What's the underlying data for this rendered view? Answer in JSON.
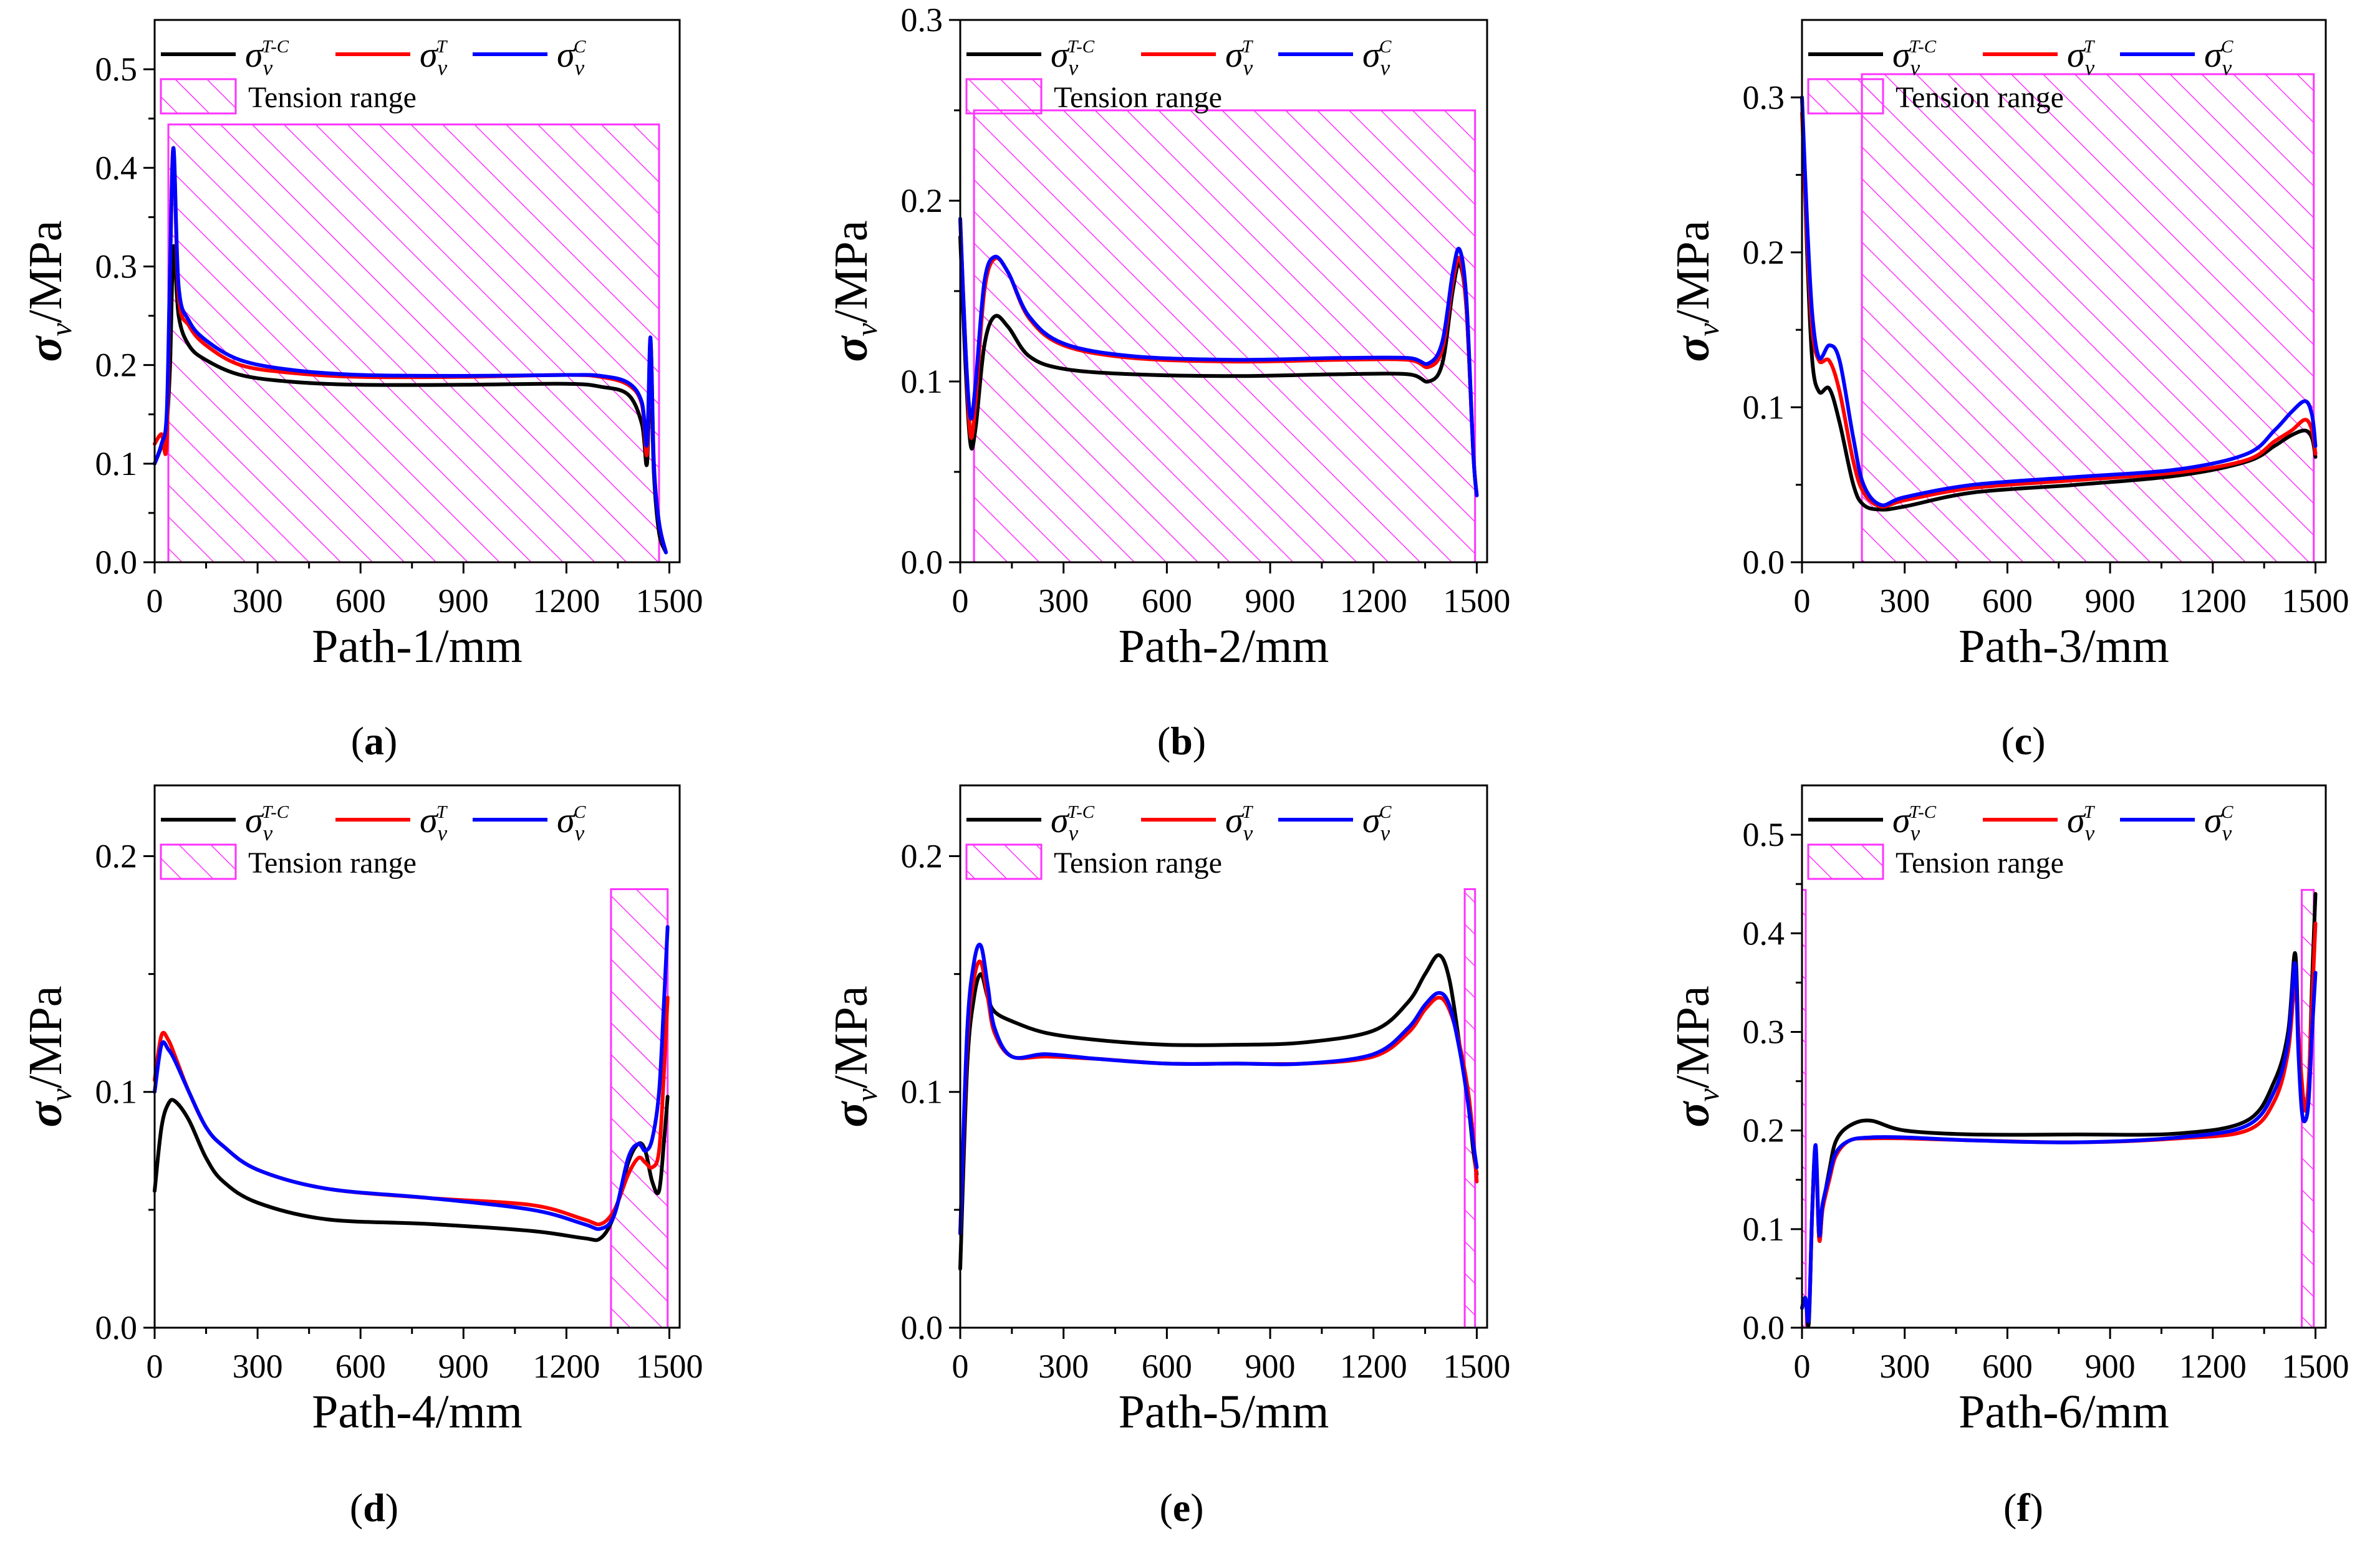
{
  "legend": {
    "tension_label": "Tension range",
    "tc_sup": "T-C",
    "t_sup": "T",
    "c_sup": "C"
  },
  "colors": {
    "tc": "#000000",
    "t": "#ff0000",
    "c": "#0000ff",
    "hatch": "#ff33ff"
  },
  "chart_data": [
    {
      "type": "line",
      "label": "(a)",
      "xlabel": "Path-1/mm",
      "ylabel": "/MPa",
      "xlim": [
        0,
        1530
      ],
      "ylim": [
        0,
        0.55
      ],
      "xticks": [
        0,
        300,
        600,
        900,
        1200,
        1500
      ],
      "yticks": [
        0.0,
        0.1,
        0.2,
        0.3,
        0.4,
        0.5
      ],
      "tension_ranges": [
        [
          40,
          1470
        ]
      ],
      "tension_ymax": 0.444,
      "series": [
        {
          "name": "σv T-C",
          "x": [
            0,
            20,
            35,
            45,
            55,
            70,
            100,
            150,
            250,
            400,
            600,
            900,
            1200,
            1300,
            1380,
            1420,
            1435,
            1445,
            1455,
            1470,
            1490
          ],
          "y": [
            0.1,
            0.118,
            0.14,
            0.2,
            0.32,
            0.25,
            0.22,
            0.205,
            0.19,
            0.183,
            0.18,
            0.18,
            0.181,
            0.178,
            0.17,
            0.14,
            0.1,
            0.2,
            0.09,
            0.03,
            0.01
          ]
        },
        {
          "name": "σv T",
          "x": [
            0,
            20,
            35,
            45,
            55,
            70,
            100,
            150,
            250,
            400,
            600,
            900,
            1200,
            1300,
            1380,
            1420,
            1435,
            1445,
            1455,
            1470,
            1490
          ],
          "y": [
            0.12,
            0.13,
            0.12,
            0.3,
            0.42,
            0.27,
            0.24,
            0.22,
            0.2,
            0.192,
            0.188,
            0.188,
            0.19,
            0.188,
            0.18,
            0.16,
            0.11,
            0.225,
            0.1,
            0.04,
            0.01
          ]
        },
        {
          "name": "σv C",
          "x": [
            0,
            20,
            35,
            45,
            55,
            70,
            100,
            150,
            250,
            400,
            600,
            900,
            1200,
            1300,
            1380,
            1420,
            1435,
            1445,
            1455,
            1470,
            1490
          ],
          "y": [
            0.1,
            0.12,
            0.15,
            0.3,
            0.42,
            0.28,
            0.245,
            0.225,
            0.205,
            0.195,
            0.19,
            0.189,
            0.19,
            0.189,
            0.182,
            0.162,
            0.12,
            0.228,
            0.1,
            0.04,
            0.01
          ]
        }
      ]
    },
    {
      "type": "line",
      "label": "(b)",
      "xlabel": "Path-2/mm",
      "ylabel": "/MPa",
      "xlim": [
        0,
        1530
      ],
      "ylim": [
        0,
        0.3
      ],
      "xticks": [
        0,
        300,
        600,
        900,
        1200,
        1500
      ],
      "yticks": [
        0.0,
        0.1,
        0.2,
        0.3
      ],
      "tension_ranges": [
        [
          40,
          1495
        ]
      ],
      "tension_ymax": 0.25,
      "series": [
        {
          "name": "σv T-C",
          "x": [
            0,
            15,
            30,
            45,
            70,
            100,
            140,
            200,
            300,
            500,
            800,
            1100,
            1300,
            1360,
            1400,
            1430,
            1450,
            1470,
            1490,
            1500
          ],
          "y": [
            0.18,
            0.11,
            0.065,
            0.075,
            0.12,
            0.136,
            0.13,
            0.114,
            0.107,
            0.104,
            0.103,
            0.104,
            0.104,
            0.1,
            0.11,
            0.15,
            0.165,
            0.14,
            0.06,
            0.037
          ]
        },
        {
          "name": "σv T",
          "x": [
            0,
            15,
            30,
            45,
            70,
            100,
            140,
            200,
            300,
            500,
            800,
            1100,
            1300,
            1360,
            1400,
            1430,
            1450,
            1470,
            1490,
            1500
          ],
          "y": [
            0.19,
            0.12,
            0.07,
            0.09,
            0.15,
            0.168,
            0.16,
            0.135,
            0.12,
            0.113,
            0.111,
            0.112,
            0.112,
            0.108,
            0.118,
            0.155,
            0.168,
            0.14,
            0.06,
            0.037
          ]
        },
        {
          "name": "σv C",
          "x": [
            0,
            15,
            30,
            45,
            70,
            100,
            140,
            200,
            300,
            500,
            800,
            1100,
            1300,
            1360,
            1400,
            1430,
            1450,
            1470,
            1490,
            1500
          ],
          "y": [
            0.19,
            0.12,
            0.08,
            0.1,
            0.155,
            0.169,
            0.16,
            0.136,
            0.121,
            0.114,
            0.112,
            0.113,
            0.113,
            0.11,
            0.122,
            0.16,
            0.173,
            0.145,
            0.06,
            0.037
          ]
        }
      ]
    },
    {
      "type": "line",
      "label": "(c)",
      "xlabel": "Path-3/mm",
      "ylabel": "/MPa",
      "xlim": [
        0,
        1530
      ],
      "ylim": [
        0,
        0.35
      ],
      "xticks": [
        0,
        300,
        600,
        900,
        1200,
        1500
      ],
      "yticks": [
        0.0,
        0.1,
        0.2,
        0.3
      ],
      "tension_ranges": [
        [
          175,
          1495
        ]
      ],
      "tension_ymax": 0.315,
      "series": [
        {
          "name": "σv T-C",
          "x": [
            0,
            15,
            30,
            50,
            80,
            110,
            150,
            180,
            230,
            300,
            500,
            800,
            1100,
            1300,
            1380,
            1430,
            1470,
            1490,
            1500
          ],
          "y": [
            0.3,
            0.2,
            0.13,
            0.11,
            0.112,
            0.09,
            0.05,
            0.037,
            0.034,
            0.036,
            0.045,
            0.05,
            0.056,
            0.065,
            0.075,
            0.082,
            0.085,
            0.08,
            0.068
          ]
        },
        {
          "name": "σv T",
          "x": [
            0,
            15,
            30,
            50,
            80,
            110,
            150,
            180,
            230,
            300,
            500,
            800,
            1100,
            1300,
            1380,
            1430,
            1470,
            1490,
            1500
          ],
          "y": [
            0.29,
            0.21,
            0.15,
            0.13,
            0.13,
            0.11,
            0.065,
            0.045,
            0.036,
            0.04,
            0.048,
            0.053,
            0.058,
            0.066,
            0.078,
            0.085,
            0.092,
            0.085,
            0.07
          ]
        },
        {
          "name": "σv C",
          "x": [
            0,
            15,
            30,
            50,
            80,
            110,
            150,
            180,
            230,
            300,
            500,
            800,
            1100,
            1300,
            1380,
            1430,
            1470,
            1490,
            1500
          ],
          "y": [
            0.3,
            0.22,
            0.16,
            0.132,
            0.14,
            0.13,
            0.08,
            0.05,
            0.037,
            0.042,
            0.05,
            0.055,
            0.06,
            0.07,
            0.085,
            0.097,
            0.104,
            0.095,
            0.075
          ]
        }
      ]
    },
    {
      "type": "line",
      "label": "(d)",
      "xlabel": "Path-4/mm",
      "ylabel": "/MPa",
      "xlim": [
        0,
        1530
      ],
      "ylim": [
        0,
        0.23
      ],
      "xticks": [
        0,
        300,
        600,
        900,
        1200,
        1500
      ],
      "yticks": [
        0.0,
        0.1,
        0.2
      ],
      "tension_ranges": [
        [
          1330,
          1495
        ]
      ],
      "tension_ymax": 0.186,
      "series": [
        {
          "name": "σv T-C",
          "x": [
            0,
            20,
            40,
            60,
            100,
            150,
            200,
            300,
            500,
            800,
            1100,
            1250,
            1300,
            1340,
            1380,
            1410,
            1430,
            1450,
            1470,
            1485,
            1495
          ],
          "y": [
            0.058,
            0.085,
            0.095,
            0.096,
            0.088,
            0.072,
            0.062,
            0.053,
            0.046,
            0.044,
            0.041,
            0.038,
            0.038,
            0.048,
            0.07,
            0.078,
            0.075,
            0.062,
            0.058,
            0.08,
            0.098
          ]
        },
        {
          "name": "σv T",
          "x": [
            0,
            20,
            40,
            60,
            100,
            150,
            200,
            300,
            500,
            800,
            1100,
            1250,
            1300,
            1340,
            1380,
            1410,
            1430,
            1450,
            1470,
            1485,
            1495
          ],
          "y": [
            0.105,
            0.124,
            0.122,
            0.115,
            0.1,
            0.085,
            0.077,
            0.067,
            0.059,
            0.055,
            0.052,
            0.046,
            0.044,
            0.05,
            0.065,
            0.072,
            0.07,
            0.068,
            0.075,
            0.11,
            0.14
          ]
        },
        {
          "name": "σv C",
          "x": [
            0,
            20,
            40,
            60,
            100,
            150,
            200,
            300,
            500,
            800,
            1100,
            1250,
            1300,
            1340,
            1380,
            1410,
            1430,
            1450,
            1470,
            1485,
            1495
          ],
          "y": [
            0.1,
            0.12,
            0.118,
            0.113,
            0.1,
            0.085,
            0.077,
            0.067,
            0.059,
            0.055,
            0.05,
            0.044,
            0.042,
            0.048,
            0.072,
            0.078,
            0.075,
            0.08,
            0.1,
            0.14,
            0.17
          ]
        }
      ]
    },
    {
      "type": "line",
      "label": "(e)",
      "xlabel": "Path-5/mm",
      "ylabel": "/MPa",
      "xlim": [
        0,
        1530
      ],
      "ylim": [
        0,
        0.23
      ],
      "xticks": [
        0,
        300,
        600,
        900,
        1200,
        1500
      ],
      "yticks": [
        0.0,
        0.1,
        0.2
      ],
      "tension_ranges": [
        [
          1465,
          1495
        ]
      ],
      "tension_ymax": 0.186,
      "series": [
        {
          "name": "σv T-C",
          "x": [
            0,
            20,
            40,
            60,
            80,
            100,
            150,
            250,
            400,
            600,
            800,
            1000,
            1200,
            1300,
            1350,
            1390,
            1420,
            1450,
            1475,
            1490,
            1500
          ],
          "y": [
            0.025,
            0.11,
            0.14,
            0.15,
            0.14,
            0.134,
            0.13,
            0.125,
            0.122,
            0.12,
            0.12,
            0.121,
            0.126,
            0.138,
            0.15,
            0.158,
            0.148,
            0.12,
            0.095,
            0.075,
            0.065
          ]
        },
        {
          "name": "σv T",
          "x": [
            0,
            20,
            40,
            60,
            80,
            100,
            150,
            250,
            400,
            600,
            800,
            1000,
            1200,
            1300,
            1350,
            1390,
            1420,
            1450,
            1475,
            1490,
            1500
          ],
          "y": [
            0.04,
            0.12,
            0.148,
            0.155,
            0.14,
            0.125,
            0.115,
            0.115,
            0.114,
            0.112,
            0.112,
            0.112,
            0.115,
            0.125,
            0.135,
            0.14,
            0.135,
            0.12,
            0.1,
            0.08,
            0.062
          ]
        },
        {
          "name": "σv C",
          "x": [
            0,
            20,
            40,
            60,
            80,
            100,
            150,
            250,
            400,
            600,
            800,
            1000,
            1200,
            1300,
            1350,
            1390,
            1420,
            1450,
            1475,
            1490,
            1500
          ],
          "y": [
            0.04,
            0.125,
            0.155,
            0.162,
            0.145,
            0.127,
            0.115,
            0.116,
            0.114,
            0.112,
            0.112,
            0.112,
            0.116,
            0.127,
            0.137,
            0.142,
            0.137,
            0.118,
            0.095,
            0.078,
            0.068
          ]
        }
      ]
    },
    {
      "type": "line",
      "label": "(f)",
      "xlabel": "Path-6/mm",
      "ylabel": "/MPa",
      "xlim": [
        0,
        1530
      ],
      "ylim": [
        0,
        0.55
      ],
      "xticks": [
        0,
        300,
        600,
        900,
        1200,
        1500
      ],
      "yticks": [
        0.0,
        0.1,
        0.2,
        0.3,
        0.4,
        0.5
      ],
      "tension_ranges": [
        [
          0,
          8
        ],
        [
          1460,
          1495
        ]
      ],
      "tension_ymax": 0.444,
      "series": [
        {
          "name": "σv T-C",
          "x": [
            0,
            10,
            20,
            30,
            40,
            50,
            60,
            80,
            100,
            140,
            200,
            300,
            500,
            800,
            1100,
            1300,
            1380,
            1420,
            1440,
            1450,
            1460,
            1470,
            1480,
            1490,
            1500
          ],
          "y": [
            0.02,
            0.03,
            0.005,
            0.12,
            0.18,
            0.09,
            0.12,
            0.16,
            0.19,
            0.205,
            0.21,
            0.2,
            0.196,
            0.196,
            0.197,
            0.21,
            0.25,
            0.3,
            0.38,
            0.3,
            0.24,
            0.22,
            0.24,
            0.35,
            0.44
          ]
        },
        {
          "name": "σv T",
          "x": [
            0,
            10,
            20,
            30,
            40,
            50,
            60,
            80,
            100,
            140,
            200,
            300,
            500,
            800,
            1100,
            1300,
            1380,
            1420,
            1440,
            1450,
            1460,
            1470,
            1480,
            1490,
            1500
          ],
          "y": [
            0.02,
            0.03,
            0.01,
            0.12,
            0.18,
            0.09,
            0.12,
            0.15,
            0.175,
            0.19,
            0.192,
            0.192,
            0.19,
            0.188,
            0.192,
            0.2,
            0.23,
            0.28,
            0.35,
            0.3,
            0.25,
            0.22,
            0.25,
            0.33,
            0.41
          ]
        },
        {
          "name": "σv C",
          "x": [
            0,
            10,
            20,
            30,
            40,
            50,
            60,
            80,
            100,
            140,
            200,
            300,
            500,
            800,
            1100,
            1300,
            1380,
            1420,
            1440,
            1450,
            1460,
            1470,
            1480,
            1490,
            1500
          ],
          "y": [
            0.02,
            0.03,
            0.01,
            0.12,
            0.185,
            0.095,
            0.125,
            0.155,
            0.178,
            0.19,
            0.193,
            0.193,
            0.19,
            0.188,
            0.193,
            0.205,
            0.24,
            0.29,
            0.37,
            0.28,
            0.22,
            0.21,
            0.23,
            0.3,
            0.36
          ]
        }
      ]
    }
  ]
}
